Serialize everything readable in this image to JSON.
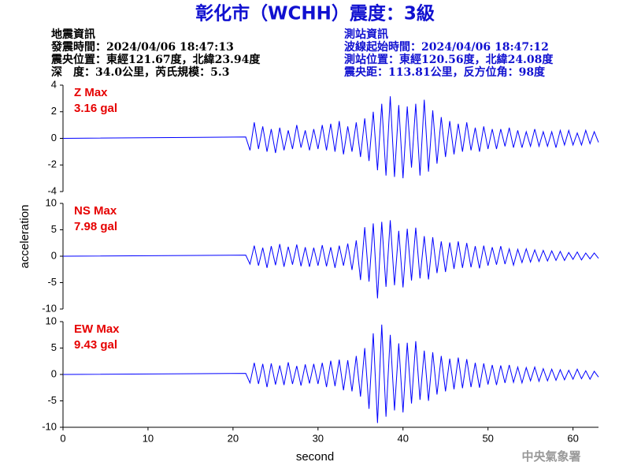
{
  "header": {
    "title": "彰化市（WCHH）震度：3級",
    "left": [
      "地震資訊",
      "發震時間：2024/04/06 18:47:13",
      "震央位置：東經121.67度，北緯23.94度",
      "深　度：34.0公里，芮氏規模：5.3"
    ],
    "right": [
      "測站資訊",
      "波線起始時間：2024/04/06 18:47:12",
      "測站位置：東經120.56度，北緯24.08度",
      "震央距：113.81公里，反方位角：98度"
    ]
  },
  "footer": "中央氣象署",
  "chart_data": [
    {
      "type": "line",
      "label": "Z Max",
      "max_label": "3.16 gal",
      "color": "#0000ff",
      "label_color": "#e60000",
      "xlim": [
        0,
        63
      ],
      "ylim": [
        -4,
        4
      ],
      "yticks": [
        -4,
        -2,
        0,
        2,
        4
      ],
      "x": [
        0,
        21.5,
        22,
        22.5,
        23,
        23.5,
        24,
        24.5,
        25,
        25.5,
        26,
        26.5,
        27,
        27.5,
        28,
        28.5,
        29,
        29.5,
        30,
        30.5,
        31,
        31.5,
        32,
        32.5,
        33,
        33.5,
        34,
        34.5,
        35,
        35.5,
        36,
        36.5,
        37,
        37.5,
        38,
        38.5,
        39,
        39.5,
        40,
        40.5,
        41,
        41.5,
        42,
        42.5,
        43,
        43.5,
        44,
        44.5,
        45,
        45.5,
        46,
        46.5,
        47,
        47.5,
        48,
        48.5,
        49,
        49.5,
        50,
        50.5,
        51,
        51.5,
        52,
        52.5,
        53,
        53.5,
        54,
        54.5,
        55,
        55.5,
        56,
        56.5,
        57,
        57.5,
        58,
        58.5,
        59,
        59.5,
        60,
        60.5,
        61,
        61.5,
        62,
        62.5,
        63
      ],
      "values": [
        0,
        0.1,
        -0.9,
        1.2,
        -0.8,
        0.9,
        -1.0,
        0.7,
        -1.1,
        0.8,
        -0.9,
        0.6,
        -0.8,
        1.0,
        -0.7,
        0.6,
        -0.9,
        0.7,
        -0.8,
        1.0,
        -0.9,
        1.1,
        -1.0,
        1.3,
        -1.2,
        0.9,
        -1.0,
        1.2,
        -1.4,
        1.5,
        -1.7,
        2.0,
        -2.4,
        2.6,
        -2.8,
        3.16,
        -2.9,
        2.5,
        -3.0,
        2.4,
        -2.2,
        2.6,
        -2.8,
        2.9,
        -2.5,
        2.1,
        -1.9,
        1.6,
        -1.4,
        1.3,
        -1.2,
        1.1,
        -1.0,
        1.2,
        -0.9,
        0.8,
        -1.0,
        0.9,
        -0.8,
        0.7,
        -0.8,
        0.7,
        -0.6,
        0.8,
        -0.7,
        0.6,
        -0.7,
        0.5,
        -0.6,
        0.7,
        -0.6,
        0.5,
        -0.6,
        0.5,
        -0.7,
        0.6,
        -0.5,
        0.6,
        -0.5,
        0.4,
        -0.5,
        0.6,
        -0.4,
        0.5,
        -0.3
      ]
    },
    {
      "type": "line",
      "label": "NS Max",
      "max_label": "7.98 gal",
      "color": "#0000ff",
      "label_color": "#e60000",
      "ylabel": "acceleration",
      "xlim": [
        0,
        63
      ],
      "ylim": [
        -10,
        10
      ],
      "yticks": [
        -10,
        -5,
        0,
        5,
        10
      ],
      "x": [
        0,
        21.5,
        22,
        22.5,
        23,
        23.5,
        24,
        24.5,
        25,
        25.5,
        26,
        26.5,
        27,
        27.5,
        28,
        28.5,
        29,
        29.5,
        30,
        30.5,
        31,
        31.5,
        32,
        32.5,
        33,
        33.5,
        34,
        34.5,
        35,
        35.5,
        36,
        36.5,
        37,
        37.5,
        38,
        38.5,
        39,
        39.5,
        40,
        40.5,
        41,
        41.5,
        42,
        42.5,
        43,
        43.5,
        44,
        44.5,
        45,
        45.5,
        46,
        46.5,
        47,
        47.5,
        48,
        48.5,
        49,
        49.5,
        50,
        50.5,
        51,
        51.5,
        52,
        52.5,
        53,
        53.5,
        54,
        54.5,
        55,
        55.5,
        56,
        56.5,
        57,
        57.5,
        58,
        58.5,
        59,
        59.5,
        60,
        60.5,
        61,
        61.5,
        62,
        62.5,
        63
      ],
      "values": [
        0,
        0.2,
        -1.5,
        2.0,
        -1.8,
        1.6,
        -2.2,
        1.9,
        -1.7,
        2.3,
        -2.0,
        1.8,
        -1.6,
        2.2,
        -1.9,
        1.7,
        -2.0,
        1.6,
        -1.8,
        2.1,
        -1.9,
        1.7,
        -2.2,
        2.0,
        -1.8,
        2.4,
        -2.6,
        3.0,
        -4.5,
        5.5,
        -4.8,
        6.2,
        -7.98,
        6.5,
        -5.8,
        6.8,
        -5.5,
        4.8,
        -5.9,
        5.2,
        -4.6,
        5.4,
        -4.2,
        3.8,
        -4.4,
        3.6,
        -3.2,
        2.8,
        -3.0,
        2.6,
        -2.4,
        2.8,
        -2.2,
        2.5,
        -2.1,
        1.9,
        -2.3,
        2.0,
        -1.8,
        1.7,
        -1.6,
        1.9,
        -1.5,
        1.4,
        -1.7,
        1.3,
        -1.2,
        1.4,
        -1.1,
        1.2,
        -1.0,
        1.1,
        -0.9,
        1.0,
        -0.8,
        0.9,
        -0.8,
        0.7,
        -0.6,
        0.8,
        -0.7,
        0.6,
        -0.5,
        0.6,
        -0.4
      ]
    },
    {
      "type": "line",
      "label": "EW Max",
      "max_label": "9.43 gal",
      "color": "#0000ff",
      "label_color": "#e60000",
      "xlabel": "second",
      "xlim": [
        0,
        63
      ],
      "xticks": [
        0,
        10,
        20,
        30,
        40,
        50,
        60
      ],
      "ylim": [
        -10,
        10
      ],
      "yticks": [
        -10,
        -5,
        0,
        5,
        10
      ],
      "x": [
        0,
        21.5,
        22,
        22.5,
        23,
        23.5,
        24,
        24.5,
        25,
        25.5,
        26,
        26.5,
        27,
        27.5,
        28,
        28.5,
        29,
        29.5,
        30,
        30.5,
        31,
        31.5,
        32,
        32.5,
        33,
        33.5,
        34,
        34.5,
        35,
        35.5,
        36,
        36.5,
        37,
        37.5,
        38,
        38.5,
        39,
        39.5,
        40,
        40.5,
        41,
        41.5,
        42,
        42.5,
        43,
        43.5,
        44,
        44.5,
        45,
        45.5,
        46,
        46.5,
        47,
        47.5,
        48,
        48.5,
        49,
        49.5,
        50,
        50.5,
        51,
        51.5,
        52,
        52.5,
        53,
        53.5,
        54,
        54.5,
        55,
        55.5,
        56,
        56.5,
        57,
        57.5,
        58,
        58.5,
        59,
        59.5,
        60,
        60.5,
        61,
        61.5,
        62,
        62.5,
        63
      ],
      "values": [
        0,
        0.2,
        -1.6,
        2.2,
        -1.8,
        2.0,
        -2.4,
        2.1,
        -1.9,
        1.7,
        -2.0,
        2.3,
        -1.8,
        1.6,
        -2.1,
        1.9,
        -1.7,
        2.0,
        -1.8,
        2.2,
        -2.4,
        2.6,
        -2.2,
        2.8,
        -3.0,
        2.7,
        -3.2,
        3.5,
        -4.2,
        5.0,
        -6.5,
        7.8,
        -9.2,
        9.43,
        -8.0,
        7.5,
        -6.8,
        5.9,
        -7.2,
        6.0,
        -5.5,
        6.3,
        -4.8,
        4.5,
        -5.0,
        4.2,
        -3.8,
        3.5,
        -3.2,
        3.0,
        -2.8,
        3.2,
        -2.6,
        2.9,
        -2.4,
        2.2,
        -2.5,
        2.1,
        -1.9,
        1.8,
        -2.0,
        1.7,
        -1.6,
        1.8,
        -1.5,
        1.4,
        -1.6,
        1.3,
        -1.2,
        1.4,
        -1.3,
        1.1,
        -1.2,
        1.0,
        -1.1,
        0.9,
        -1.0,
        0.8,
        -0.9,
        1.0,
        -0.8,
        0.7,
        -0.9,
        0.6,
        -0.5
      ]
    }
  ]
}
